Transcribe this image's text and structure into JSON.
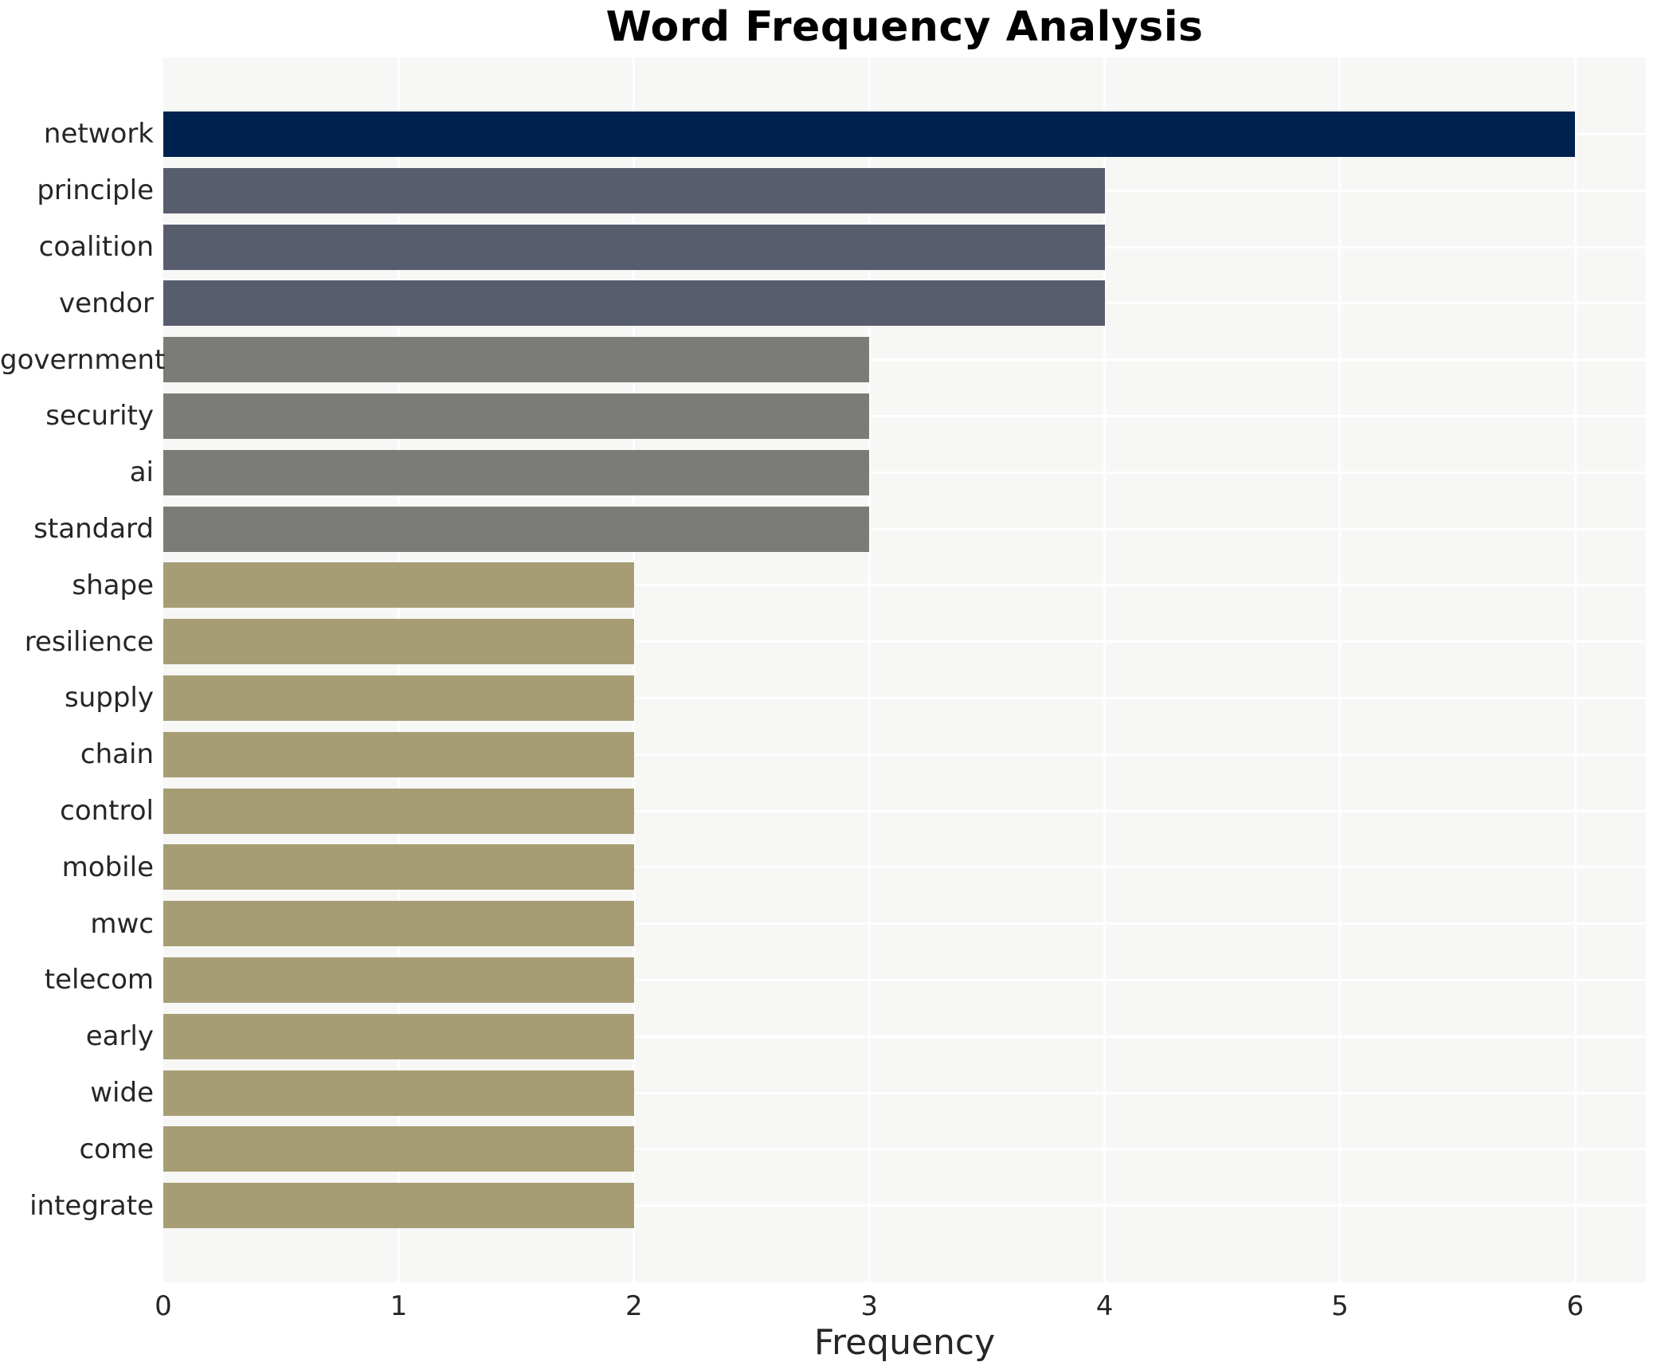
{
  "title": "Word Frequency Analysis",
  "x_axis": {
    "label": "Frequency",
    "ticks": [
      "0",
      "1",
      "2",
      "3",
      "4",
      "5",
      "6"
    ]
  },
  "chart_data": {
    "type": "bar",
    "orientation": "horizontal",
    "title": "Word Frequency Analysis",
    "xlabel": "Frequency",
    "ylabel": "",
    "xlim": [
      0,
      6.3
    ],
    "grid": true,
    "legend": false,
    "categories": [
      "network",
      "principle",
      "coalition",
      "vendor",
      "government",
      "security",
      "ai",
      "standard",
      "shape",
      "resilience",
      "supply",
      "chain",
      "control",
      "mobile",
      "mwc",
      "telecom",
      "early",
      "wide",
      "come",
      "integrate"
    ],
    "values": [
      6,
      4,
      4,
      4,
      3,
      3,
      3,
      3,
      2,
      2,
      2,
      2,
      2,
      2,
      2,
      2,
      2,
      2,
      2,
      2
    ],
    "bar_colors": [
      "#00224e",
      "#575d6d",
      "#575d6d",
      "#575d6d",
      "#7b7b78",
      "#7b7b78",
      "#7b7b78",
      "#7b7b78",
      "#a69d75",
      "#a69d75",
      "#a69d75",
      "#a69d75",
      "#a69d75",
      "#a69d75",
      "#a69d75",
      "#a69d75",
      "#a69d75",
      "#a69d75",
      "#a69d75",
      "#a69d75"
    ],
    "colors": {
      "plot_background": "#f7f7f6",
      "figure_background": "#ffffff",
      "gridline": "#ffffff",
      "text": "#262626",
      "title_text": "#000000"
    }
  }
}
